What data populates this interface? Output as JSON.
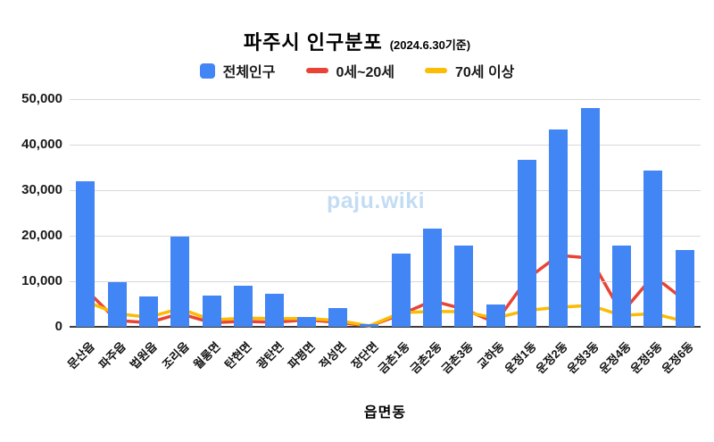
{
  "title": {
    "main": "파주시 인구분포",
    "suffix": "(2024.6.30기준)"
  },
  "legend": [
    {
      "label": "전체인구",
      "color": "#4285f4",
      "marker": "square"
    },
    {
      "label": "0세~20세",
      "color": "#ea4335",
      "marker": "line"
    },
    {
      "label": "70세 이상",
      "color": "#fbbc04",
      "marker": "line"
    }
  ],
  "watermark": "paju.wiki",
  "x_axis_title": "읍면동",
  "chart_data": {
    "type": "bar",
    "subtype": "combo bar+line",
    "title": "파주시 인구분포 (2024.6.30기준)",
    "xlabel": "읍면동",
    "ylabel": "",
    "ylim": [
      0,
      50000
    ],
    "ytick_step": 10000,
    "ytick_labels": [
      "0",
      "10,000",
      "20,000",
      "30,000",
      "40,000",
      "50,000"
    ],
    "grid": true,
    "legend_position": "top",
    "categories": [
      "문산읍",
      "파주읍",
      "법원읍",
      "조리읍",
      "월롱면",
      "탄현면",
      "광탄면",
      "파평면",
      "적성면",
      "장단면",
      "금촌1동",
      "금촌2동",
      "금촌3동",
      "교하동",
      "운정1동",
      "운정2동",
      "운정3동",
      "운정4동",
      "운정5동",
      "운정6동"
    ],
    "series": [
      {
        "name": "전체인구",
        "type": "bar",
        "color": "#4285f4",
        "values": [
          31900,
          9900,
          6700,
          19900,
          6900,
          9100,
          7300,
          2100,
          4100,
          600,
          16100,
          21500,
          17900,
          5000,
          36600,
          43400,
          48000,
          17900,
          34300,
          16900
        ]
      },
      {
        "name": "0세~20세",
        "type": "line",
        "color": "#ea4335",
        "values": [
          8300,
          1400,
          900,
          2900,
          900,
          1200,
          1000,
          1500,
          1000,
          150,
          2700,
          5700,
          3900,
          900,
          10500,
          15700,
          15100,
          3000,
          11200,
          5800
        ]
      },
      {
        "name": "70세 이상",
        "type": "line",
        "color": "#fbbc04",
        "values": [
          5600,
          2900,
          2100,
          4000,
          1500,
          1900,
          1800,
          1800,
          1400,
          200,
          3100,
          3400,
          3300,
          1900,
          3600,
          4300,
          4700,
          2500,
          2900,
          1200
        ]
      }
    ]
  }
}
